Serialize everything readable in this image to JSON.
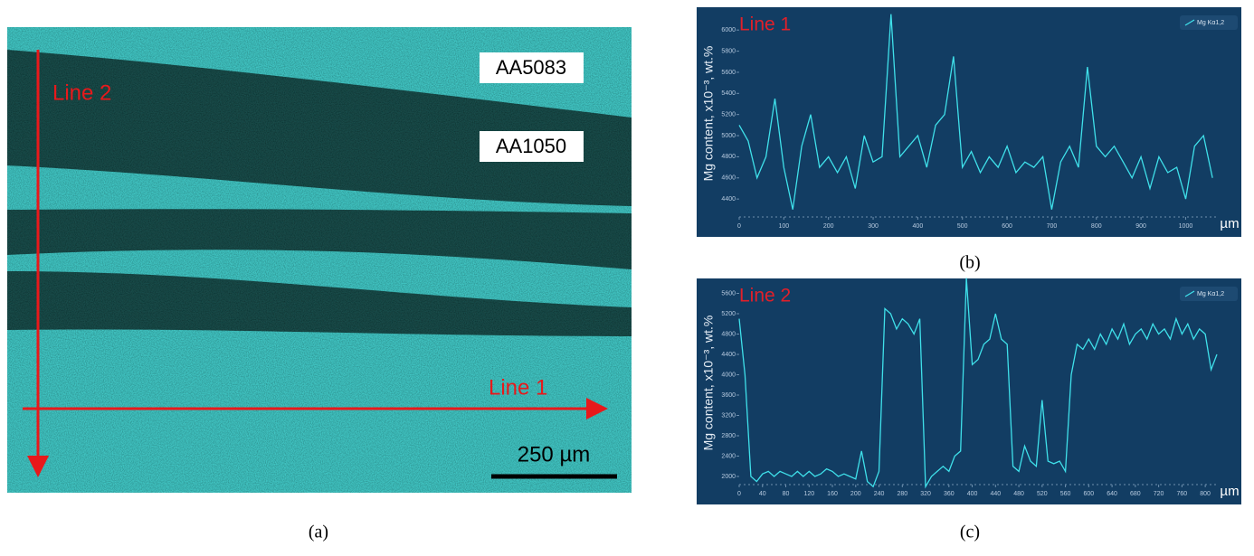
{
  "panel_a": {
    "labels": [
      "AA5083",
      "AA1050"
    ],
    "line_2": "Line 2",
    "line_1": "Line 1",
    "scale": "250 µm"
  },
  "captions": [
    "(a)",
    "(b)",
    "(c)"
  ],
  "chart_data": [
    {
      "type": "line",
      "title": "Line 1",
      "x_label": "µm",
      "y_label": "Mg content, x10⁻³, wt.%",
      "x": [
        0,
        20,
        40,
        60,
        80,
        100,
        120,
        140,
        160,
        180,
        200,
        220,
        240,
        260,
        280,
        300,
        320,
        340,
        360,
        380,
        400,
        420,
        440,
        460,
        480,
        500,
        520,
        540,
        560,
        580,
        600,
        620,
        640,
        660,
        680,
        700,
        720,
        740,
        760,
        780,
        800,
        820,
        840,
        860,
        880,
        900,
        920,
        940,
        960,
        980,
        1000,
        1020,
        1040,
        1060
      ],
      "series": [
        {
          "name": "Mg Kα1,2",
          "color": "#3fe0ea",
          "values": [
            5100,
            4950,
            4600,
            4800,
            5350,
            4700,
            4300,
            4900,
            5200,
            4700,
            4800,
            4650,
            4800,
            4500,
            5000,
            4750,
            4800,
            6150,
            4800,
            4900,
            5000,
            4700,
            5100,
            5200,
            5750,
            4700,
            4850,
            4650,
            4800,
            4700,
            4900,
            4650,
            4750,
            4700,
            4800,
            4300,
            4750,
            4900,
            4700,
            5650,
            4900,
            4800,
            4900,
            4750,
            4600,
            4800,
            4500,
            4800,
            4650,
            4700,
            4400,
            4900,
            5000,
            4600
          ]
        }
      ],
      "xlim": [
        0,
        1070
      ],
      "ylim": [
        4230,
        6190
      ],
      "xticks": [
        0,
        100,
        200,
        300,
        400,
        500,
        600,
        700,
        800,
        900,
        1000
      ],
      "yticks": [
        4400,
        4600,
        4800,
        5000,
        5200,
        5400,
        5600,
        5800,
        6000
      ]
    },
    {
      "type": "line",
      "title": "Line 2",
      "x_label": "µm",
      "y_label": "Mg content, x10⁻³, wt.%",
      "x": [
        0,
        10,
        20,
        30,
        40,
        50,
        60,
        70,
        80,
        90,
        100,
        110,
        120,
        130,
        140,
        150,
        160,
        170,
        180,
        190,
        200,
        210,
        220,
        230,
        240,
        250,
        260,
        270,
        280,
        290,
        300,
        310,
        320,
        330,
        340,
        350,
        360,
        370,
        380,
        390,
        400,
        410,
        420,
        430,
        440,
        450,
        460,
        470,
        480,
        490,
        500,
        510,
        520,
        530,
        540,
        550,
        560,
        570,
        580,
        590,
        600,
        610,
        620,
        630,
        640,
        650,
        660,
        670,
        680,
        690,
        700,
        710,
        720,
        730,
        740,
        750,
        760,
        770,
        780,
        790,
        800,
        810,
        820
      ],
      "series": [
        {
          "name": "Mg Kα1,2",
          "color": "#3fe0ea",
          "values": [
            5100,
            4000,
            2000,
            1900,
            2050,
            2100,
            2000,
            2100,
            2050,
            2000,
            2100,
            2000,
            2100,
            2000,
            2050,
            2150,
            2100,
            2000,
            2050,
            2000,
            1950,
            2500,
            1900,
            1800,
            2100,
            5300,
            5200,
            4900,
            5100,
            5000,
            4800,
            5100,
            1800,
            2000,
            2100,
            2200,
            2100,
            2400,
            2500,
            5900,
            4200,
            4300,
            4600,
            4700,
            5200,
            4700,
            4600,
            2200,
            2100,
            2600,
            2300,
            2200,
            3500,
            2300,
            2250,
            2300,
            2100,
            4000,
            4600,
            4500,
            4700,
            4500,
            4800,
            4600,
            4900,
            4700,
            5000,
            4600,
            4800,
            4900,
            4700,
            5000,
            4800,
            4900,
            4700,
            5100,
            4800,
            5000,
            4700,
            4900,
            4800,
            4100,
            4400
          ]
        }
      ],
      "xlim": [
        0,
        820
      ],
      "ylim": [
        1840,
        5840
      ],
      "xticks": [
        0,
        40,
        80,
        120,
        160,
        200,
        240,
        280,
        320,
        360,
        400,
        440,
        480,
        520,
        560,
        600,
        640,
        680,
        720,
        760,
        800
      ],
      "yticks": [
        2000,
        2400,
        2800,
        3200,
        3600,
        4000,
        4400,
        4800,
        5200,
        5600
      ]
    }
  ]
}
